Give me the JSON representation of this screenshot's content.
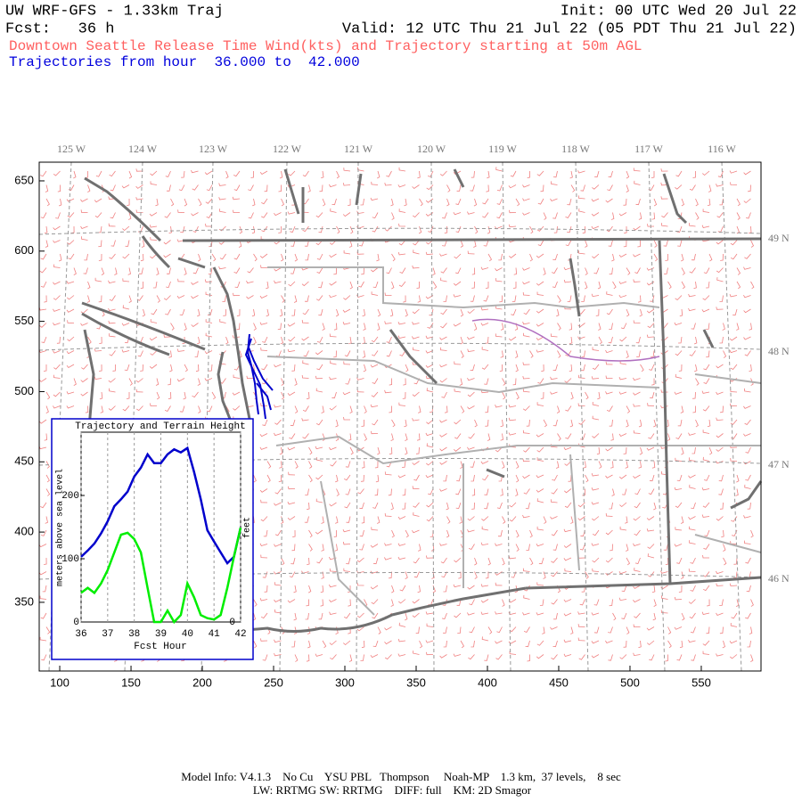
{
  "header": {
    "title": "UW WRF-GFS - 1.33km Traj",
    "init": "Init: 00 UTC Wed 20 Jul 22",
    "fcst": "Fcst:   36 h",
    "valid": "Valid: 12 UTC Thu 21 Jul 22 (05 PDT Thu 21 Jul 22)",
    "subtitle": "Downtown Seattle Release Time Wind(kts) and Trajectory starting at 50m AGL",
    "trajectories": "Trajectories from hour  36.000 to  42.000"
  },
  "map": {
    "xlim": [
      85.6,
      591.9
    ],
    "xticks": [
      100,
      150,
      200,
      250,
      300,
      350,
      400,
      450,
      500,
      550
    ],
    "ylim": [
      301.1,
      663.3
    ],
    "yticks": [
      350,
      400,
      450,
      500,
      550,
      600,
      650
    ],
    "lon_labels": [
      "125 W",
      "124 W",
      "123 W",
      "122 W",
      "121 W",
      "120 W",
      "119 W",
      "118 W",
      "117 W",
      "116 W"
    ],
    "lat_labels": [
      "49 N",
      "48 N",
      "47 N",
      "46 N"
    ]
  },
  "chart_data": {
    "type": "line",
    "title": "Trajectory and Terrain Height",
    "xlabel": "Fcst Hour",
    "ylabel": "meters above sea level",
    "y2label": "feet",
    "x": [
      36,
      36.25,
      36.5,
      36.75,
      37,
      37.25,
      37.5,
      37.75,
      38,
      38.25,
      38.5,
      38.75,
      39,
      39.25,
      39.5,
      39.75,
      40,
      40.25,
      40.5,
      40.75,
      41,
      41.25,
      41.5,
      41.75,
      42
    ],
    "series": [
      {
        "color": "#0000cc",
        "values": [
          103,
          113,
          124,
          140,
          159,
          183,
          194,
          206,
          230,
          244,
          265,
          251,
          251,
          265,
          273,
          268,
          275,
          237,
          194,
          145,
          127,
          110,
          93,
          103,
          149
        ]
      },
      {
        "color": "#00ee00",
        "values": [
          46,
          54,
          46,
          61,
          82,
          110,
          138,
          141,
          131,
          110,
          54,
          0,
          0,
          18,
          0,
          11,
          61,
          39,
          11,
          6,
          4,
          11,
          54,
          103,
          149
        ]
      }
    ],
    "xlim": [
      36,
      42
    ],
    "xticks": [
      36,
      37,
      38,
      39,
      40,
      41,
      42
    ],
    "ylim": [
      0,
      300
    ],
    "yticks": [
      0,
      100,
      200
    ],
    "y2ticks": [
      0
    ],
    "grid": true
  },
  "footer": {
    "line1": "Model Info: V4.1.3    No Cu    YSU PBL   Thompson     Noah-MP    1.3 km,  37 levels,    8 sec",
    "line2": "LW: RRTMG SW: RRTMG    DIFF: full    KM: 2D Smagor"
  }
}
